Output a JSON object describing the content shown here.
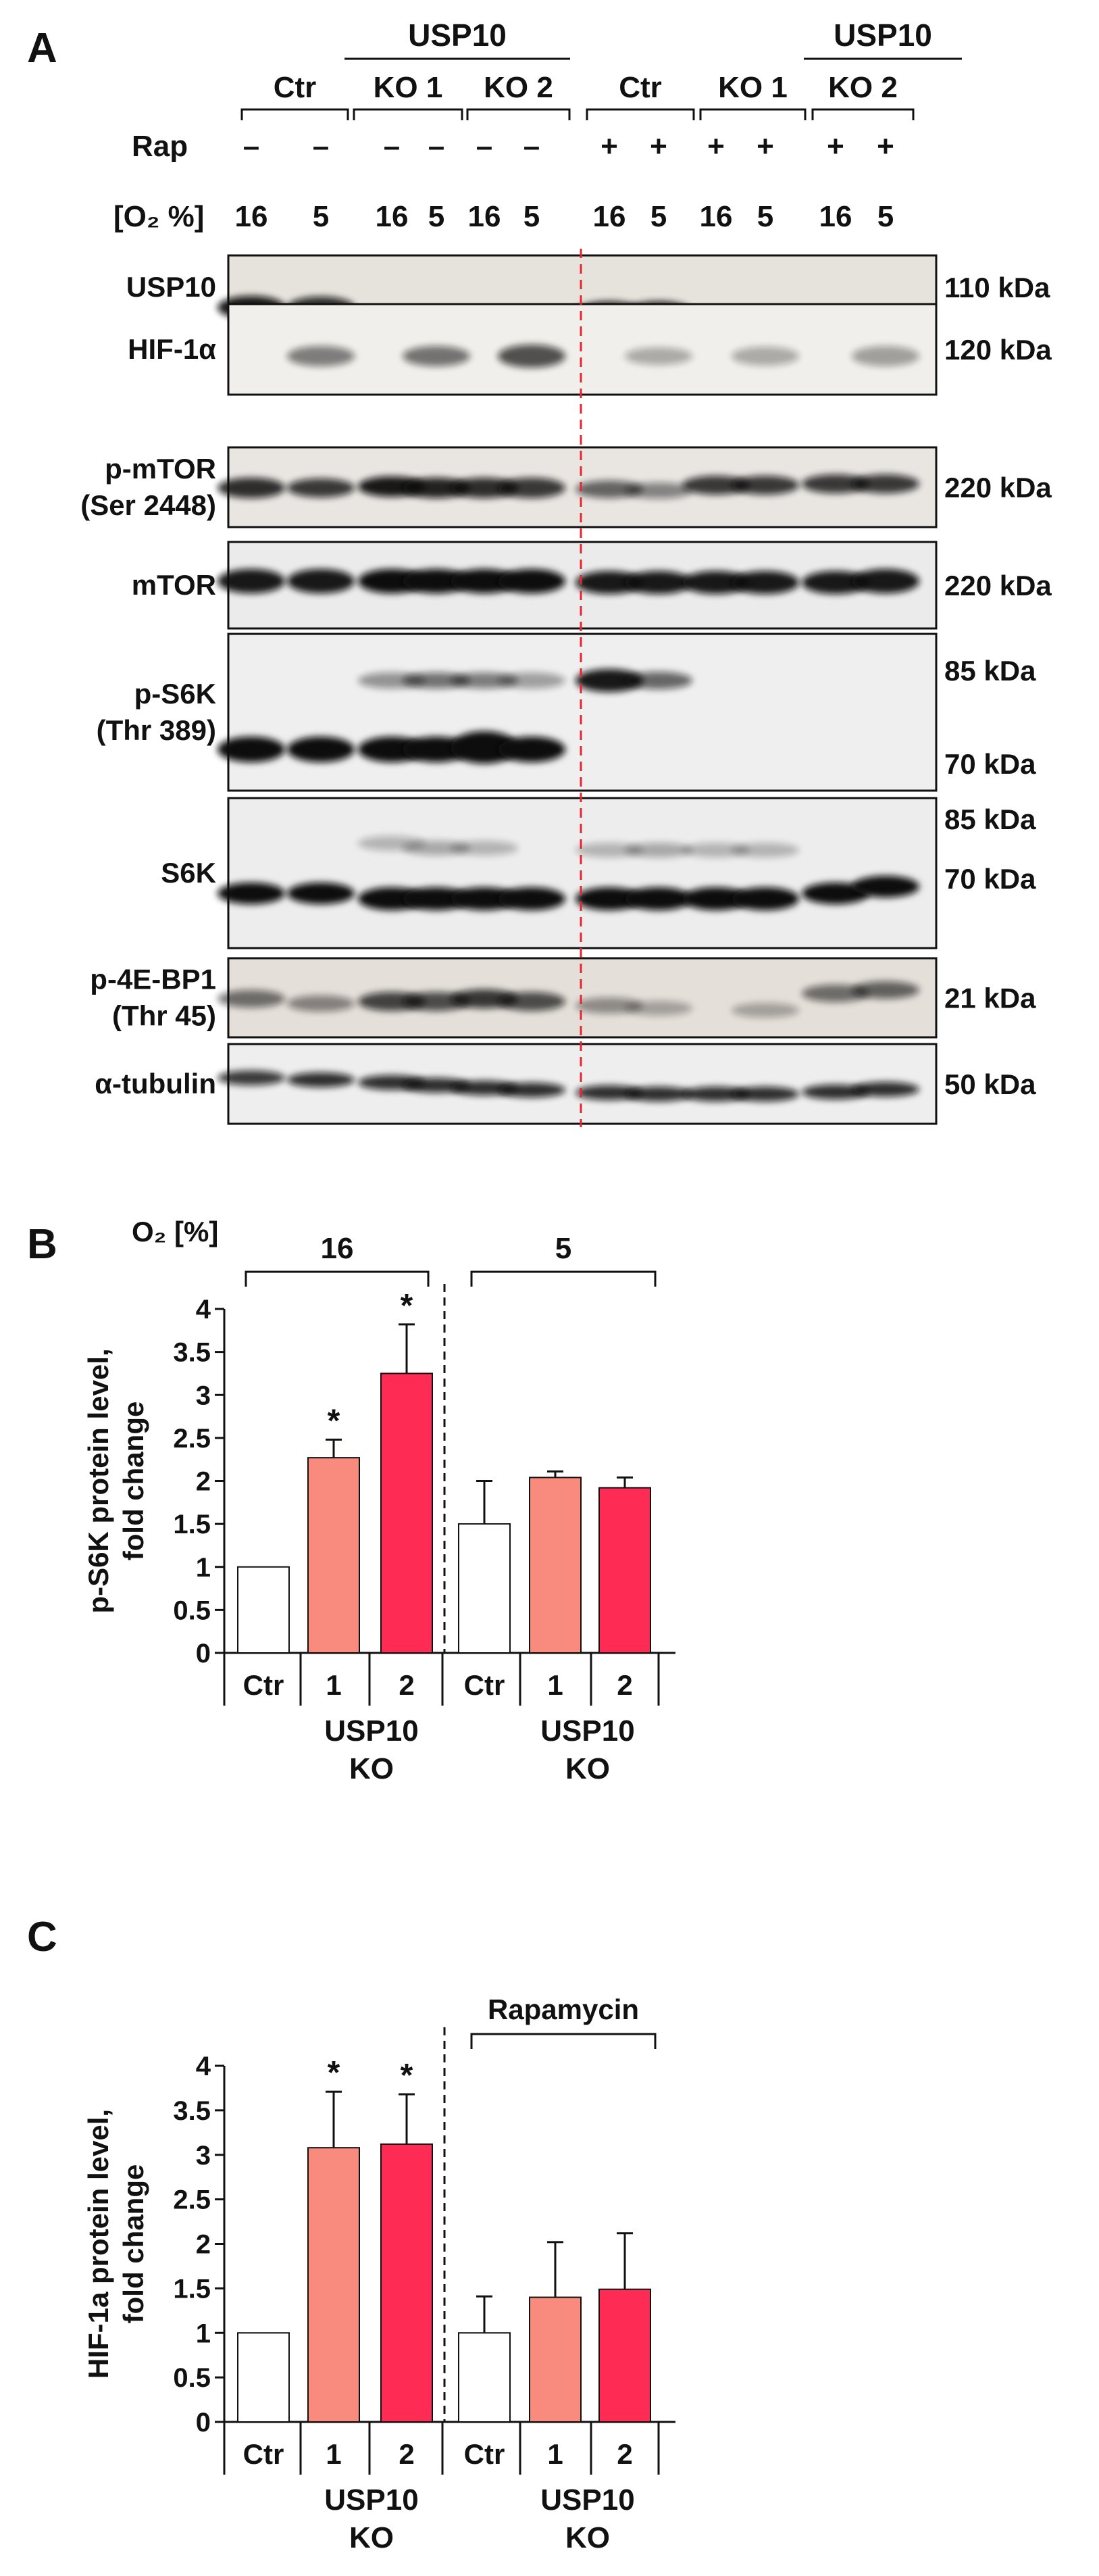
{
  "panel_a": {
    "letter": "A",
    "group_usp10": "USP10",
    "group_labels": [
      "Ctr",
      "KO 1",
      "KO 2",
      "Ctr",
      "KO 1",
      "KO 2"
    ],
    "rap_label": "Rap",
    "rap_signs": [
      "–",
      "–",
      "–",
      "–",
      "–",
      "–",
      "+",
      "+",
      "+",
      "+",
      "+",
      "+"
    ],
    "o2_label": "[O₂ %]",
    "o2_values": [
      "16",
      "5",
      "16",
      "5",
      "16",
      "5",
      "16",
      "5",
      "16",
      "5",
      "16",
      "5"
    ],
    "blots": [
      {
        "name": "USP10",
        "kda": "110 kDa",
        "bg": "#e6e2dc"
      },
      {
        "name": "HIF-1α",
        "kda": "120 kDa",
        "bg": "#f1efeb"
      },
      {
        "name": "p-mTOR\n(Ser 2448)",
        "kda": "220 kDa",
        "bg": "#e9e6e2"
      },
      {
        "name": "mTOR",
        "kda": "220 kDa",
        "bg": "#ebebeb"
      },
      {
        "name": "p-S6K\n(Thr 389)",
        "kda": "85 kDa\n70 kDa",
        "bg": "#efefef"
      },
      {
        "name": "S6K",
        "kda": "85 kDa\n70 kDa",
        "bg": "#ededed"
      },
      {
        "name": "p-4E-BP1\n(Thr 45)",
        "kda": "21 kDa",
        "bg": "#e4dfd9"
      },
      {
        "name": "α-tubulin",
        "kda": "50 kDa",
        "bg": "#eeeeee"
      }
    ]
  },
  "panel_b": {
    "letter": "B",
    "o2_label": "O₂ [%]",
    "bracket_labels": [
      "16",
      "5"
    ],
    "chart_data": {
      "type": "bar",
      "ylabel": "p-S6K protein level,\nfold change",
      "ylim": [
        0,
        4
      ],
      "yticks": [
        "0",
        "0.5",
        "1",
        "1.5",
        "2",
        "2.5",
        "3",
        "3.5",
        "4"
      ],
      "categories": [
        "Ctr",
        "1",
        "2",
        "Ctr",
        "1",
        "2"
      ],
      "values": [
        1.0,
        2.27,
        3.25,
        1.5,
        2.04,
        1.92
      ],
      "errors": [
        0,
        0.21,
        0.57,
        0.5,
        0.07,
        0.12
      ],
      "significance": [
        "",
        "*",
        "*",
        "",
        "",
        ""
      ],
      "colors": [
        "#ffffff",
        "#f98a7e",
        "#fe2b55",
        "#ffffff",
        "#f98a7e",
        "#fe2b55"
      ],
      "group_labels": [
        "USP10\nKO",
        "USP10\nKO"
      ]
    }
  },
  "panel_c": {
    "letter": "C",
    "bracket_label": "Rapamycin",
    "chart_data": {
      "type": "bar",
      "ylabel": "HIF-1a protein level,\nfold change",
      "ylim": [
        0,
        4
      ],
      "yticks": [
        "0",
        "0.5",
        "1",
        "1.5",
        "2",
        "2.5",
        "3",
        "3.5",
        "4"
      ],
      "categories": [
        "Ctr",
        "1",
        "2",
        "Ctr",
        "1",
        "2"
      ],
      "values": [
        1.0,
        3.08,
        3.12,
        1.0,
        1.4,
        1.49
      ],
      "errors": [
        0,
        0.63,
        0.56,
        0.41,
        0.62,
        0.63
      ],
      "significance": [
        "",
        "*",
        "*",
        "",
        "",
        ""
      ],
      "colors": [
        "#ffffff",
        "#f98a7e",
        "#fe2b55",
        "#ffffff",
        "#f98a7e",
        "#fe2b55"
      ],
      "group_labels": [
        "USP10\nKO",
        "USP10\nKO"
      ]
    }
  }
}
